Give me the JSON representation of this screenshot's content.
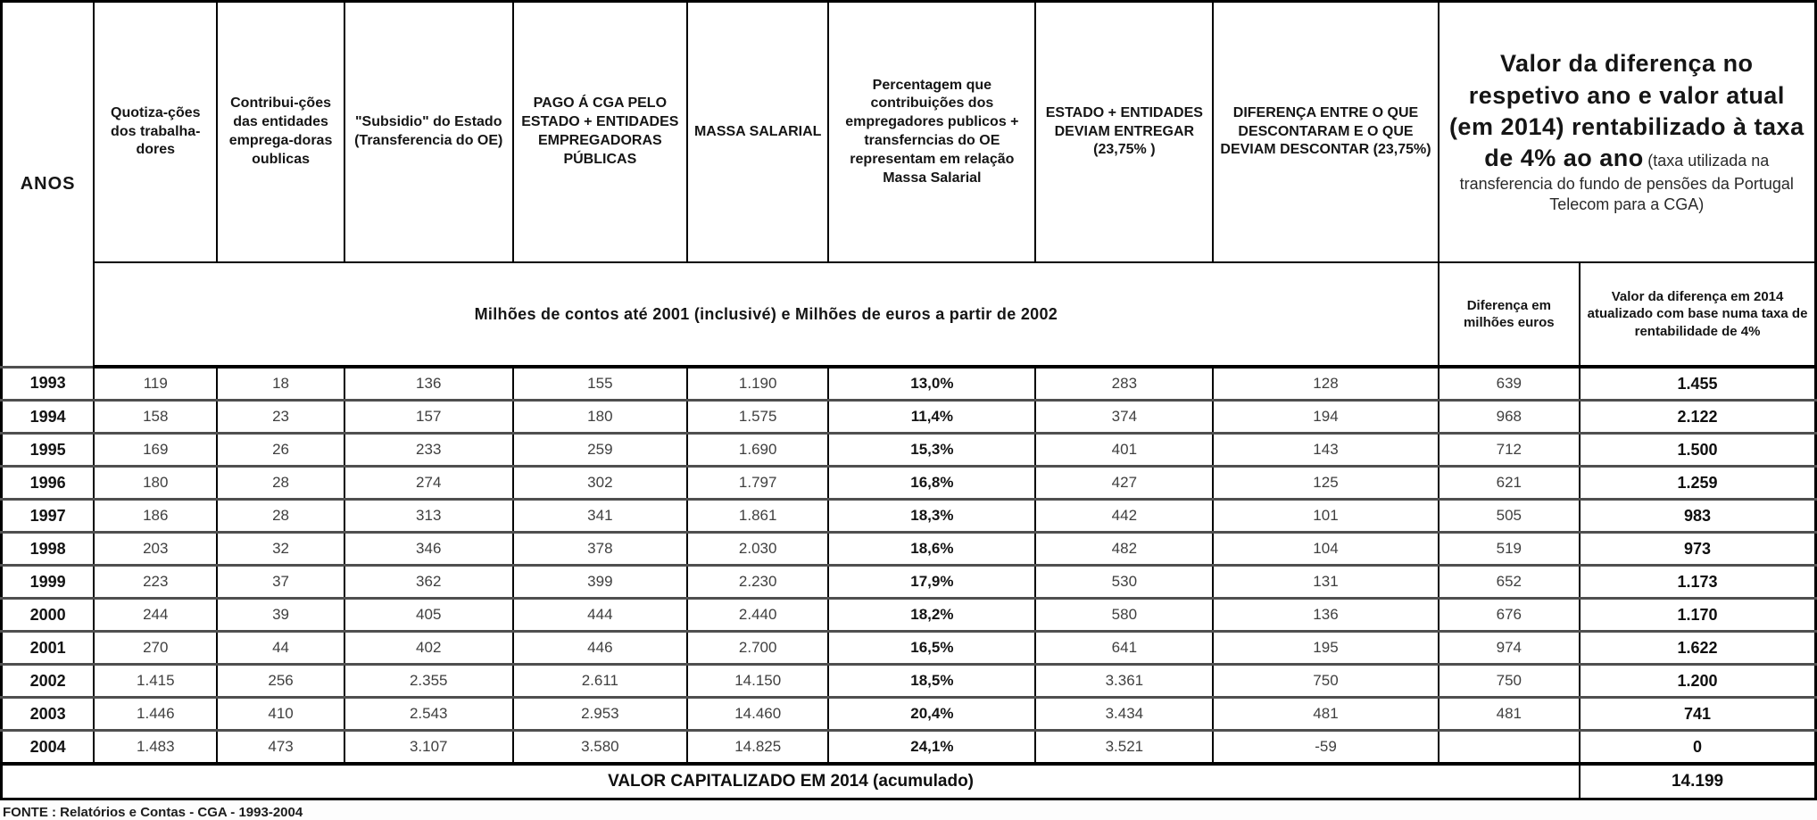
{
  "table": {
    "headers": {
      "anos": "ANOS",
      "quotizacoes": "Quotiza-ções dos trabalha-dores",
      "contribuicoes": "Contribui-ções das entidades emprega-doras oublicas",
      "subsidio": "\"Subsidio\" do Estado (Transferencia do OE)",
      "pago": "PAGO Á CGA PELO ESTADO + ENTIDADES EMPREGADORAS PÚBLICAS",
      "massa": "MASSA SALARIAL",
      "percentagem": "Percentagem que contribuições dos empregadores publicos + transferncias do OE representam em relação Massa Salarial",
      "estado_deviam": "ESTADO + ENTIDADES DEVIAM ENTREGAR (23,75% )",
      "diferenca": "DIFERENÇA ENTRE O QUE DESCONTARAM E O QUE DEVIAM DESCONTAR (23,75%)",
      "valor_main": "Valor da diferença no respetivo ano e valor atual (em 2014) rentabilizado à taxa de 4% ao ano",
      "valor_note": "(taxa utilizada na transferencia do fundo de pensões da Portugal Telecom para a CGA)",
      "banner": "Milhões de contos até 2001 (inclusivé) e Milhões de euros a partir de 2002",
      "dif_milhoes": "Diferença em milhões euros",
      "valor_2014": "Valor da diferença em 2014 atualizado com base numa taxa de rentabilidade de 4%"
    },
    "rows": [
      [
        "1993",
        "119",
        "18",
        "136",
        "155",
        "1.190",
        "13,0%",
        "283",
        "128",
        "639",
        "1.455"
      ],
      [
        "1994",
        "158",
        "23",
        "157",
        "180",
        "1.575",
        "11,4%",
        "374",
        "194",
        "968",
        "2.122"
      ],
      [
        "1995",
        "169",
        "26",
        "233",
        "259",
        "1.690",
        "15,3%",
        "401",
        "143",
        "712",
        "1.500"
      ],
      [
        "1996",
        "180",
        "28",
        "274",
        "302",
        "1.797",
        "16,8%",
        "427",
        "125",
        "621",
        "1.259"
      ],
      [
        "1997",
        "186",
        "28",
        "313",
        "341",
        "1.861",
        "18,3%",
        "442",
        "101",
        "505",
        "983"
      ],
      [
        "1998",
        "203",
        "32",
        "346",
        "378",
        "2.030",
        "18,6%",
        "482",
        "104",
        "519",
        "973"
      ],
      [
        "1999",
        "223",
        "37",
        "362",
        "399",
        "2.230",
        "17,9%",
        "530",
        "131",
        "652",
        "1.173"
      ],
      [
        "2000",
        "244",
        "39",
        "405",
        "444",
        "2.440",
        "18,2%",
        "580",
        "136",
        "676",
        "1.170"
      ],
      [
        "2001",
        "270",
        "44",
        "402",
        "446",
        "2.700",
        "16,5%",
        "641",
        "195",
        "974",
        "1.622"
      ],
      [
        "2002",
        "1.415",
        "256",
        "2.355",
        "2.611",
        "14.150",
        "18,5%",
        "3.361",
        "750",
        "750",
        "1.200"
      ],
      [
        "2003",
        "1.446",
        "410",
        "2.543",
        "2.953",
        "14.460",
        "20,4%",
        "3.434",
        "481",
        "481",
        "741"
      ],
      [
        "2004",
        "1.483",
        "473",
        "3.107",
        "3.580",
        "14.825",
        "24,1%",
        "3.521",
        "-59",
        "",
        "0"
      ]
    ],
    "footer": {
      "label": "VALOR CAPITALIZADO EM 2014 (acumulado)",
      "total": "14.199"
    }
  },
  "source": "FONTE : Relatórios e Contas - CGA - 1993-2004"
}
